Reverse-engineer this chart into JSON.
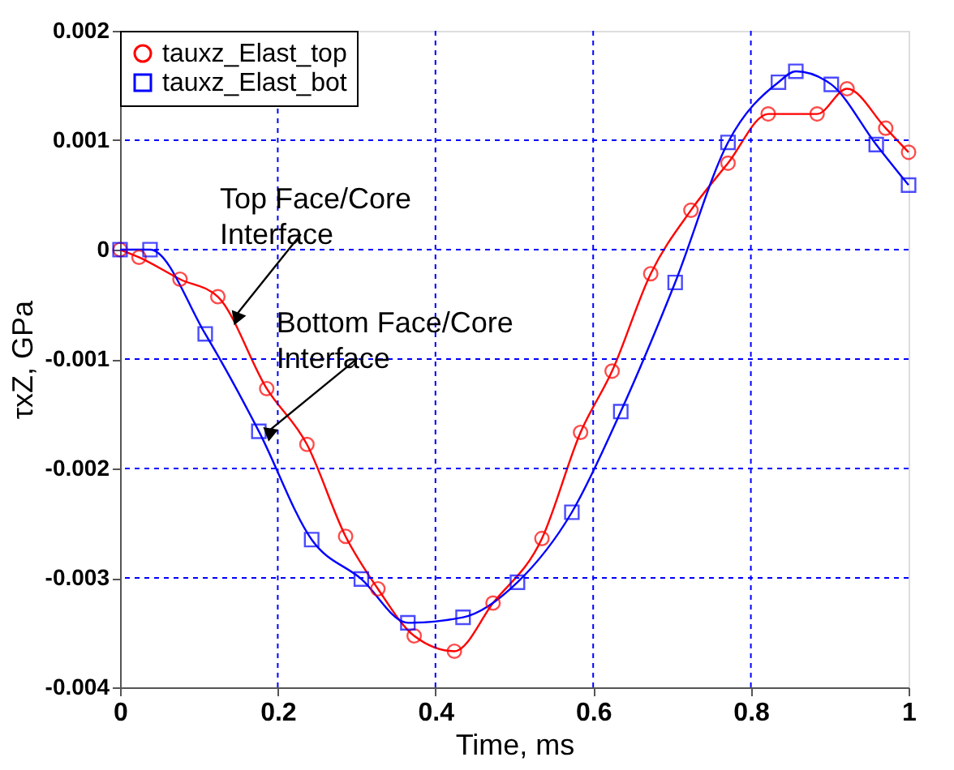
{
  "chart_data": {
    "type": "line",
    "xlabel": "Time, ms",
    "ylabel": "τxZ, GPa",
    "xlim": [
      0,
      1
    ],
    "xticks": [
      0,
      0.2,
      0.4,
      0.6,
      0.8,
      1
    ],
    "ylim": [
      -0.004,
      0.002
    ],
    "yticks": [
      -0.004,
      -0.003,
      -0.002,
      -0.001,
      0,
      0.001,
      0.002
    ],
    "grid": true,
    "legend": "top left",
    "line_style": "solid",
    "series": [
      {
        "name": "tauxz_Elast_top",
        "color": "#ff0000",
        "marker": "circle",
        "x": [
          0,
          0.024,
          0.076,
          0.124,
          0.186,
          0.237,
          0.286,
          0.327,
          0.373,
          0.424,
          0.473,
          0.535,
          0.584,
          0.624,
          0.673,
          0.724,
          0.771,
          0.822,
          0.884,
          0.922,
          0.971,
          1.0
        ],
        "values": [
          0,
          -7e-05,
          -0.00027,
          -0.00043,
          -0.00127,
          -0.00178,
          -0.00262,
          -0.0031,
          -0.00353,
          -0.00367,
          -0.00323,
          -0.00264,
          -0.00167,
          -0.00111,
          -0.00022,
          0.00036,
          0.00079,
          0.00124,
          0.00124,
          0.00147,
          0.00111,
          0.00089
        ]
      },
      {
        "name": "tauxz_Elast_bot",
        "color": "#0000ff",
        "marker": "square",
        "x": [
          0,
          0.038,
          0.108,
          0.176,
          0.243,
          0.306,
          0.365,
          0.435,
          0.504,
          0.573,
          0.635,
          0.704,
          0.771,
          0.835,
          0.857,
          0.902,
          0.959,
          1.0
        ],
        "values": [
          0,
          0,
          -0.00077,
          -0.00166,
          -0.00265,
          -0.00301,
          -0.00341,
          -0.00336,
          -0.00304,
          -0.0024,
          -0.00148,
          -0.0003,
          0.00098,
          0.00153,
          0.00163,
          0.00151,
          0.00096,
          0.00059
        ]
      }
    ],
    "annotations": [
      {
        "text": "Top Face/Core Interface",
        "x": 0.147,
        "y": -0.0006
      },
      {
        "text": "Bottom Face/Core Interface",
        "x": 0.188,
        "y": -0.00166
      }
    ]
  }
}
